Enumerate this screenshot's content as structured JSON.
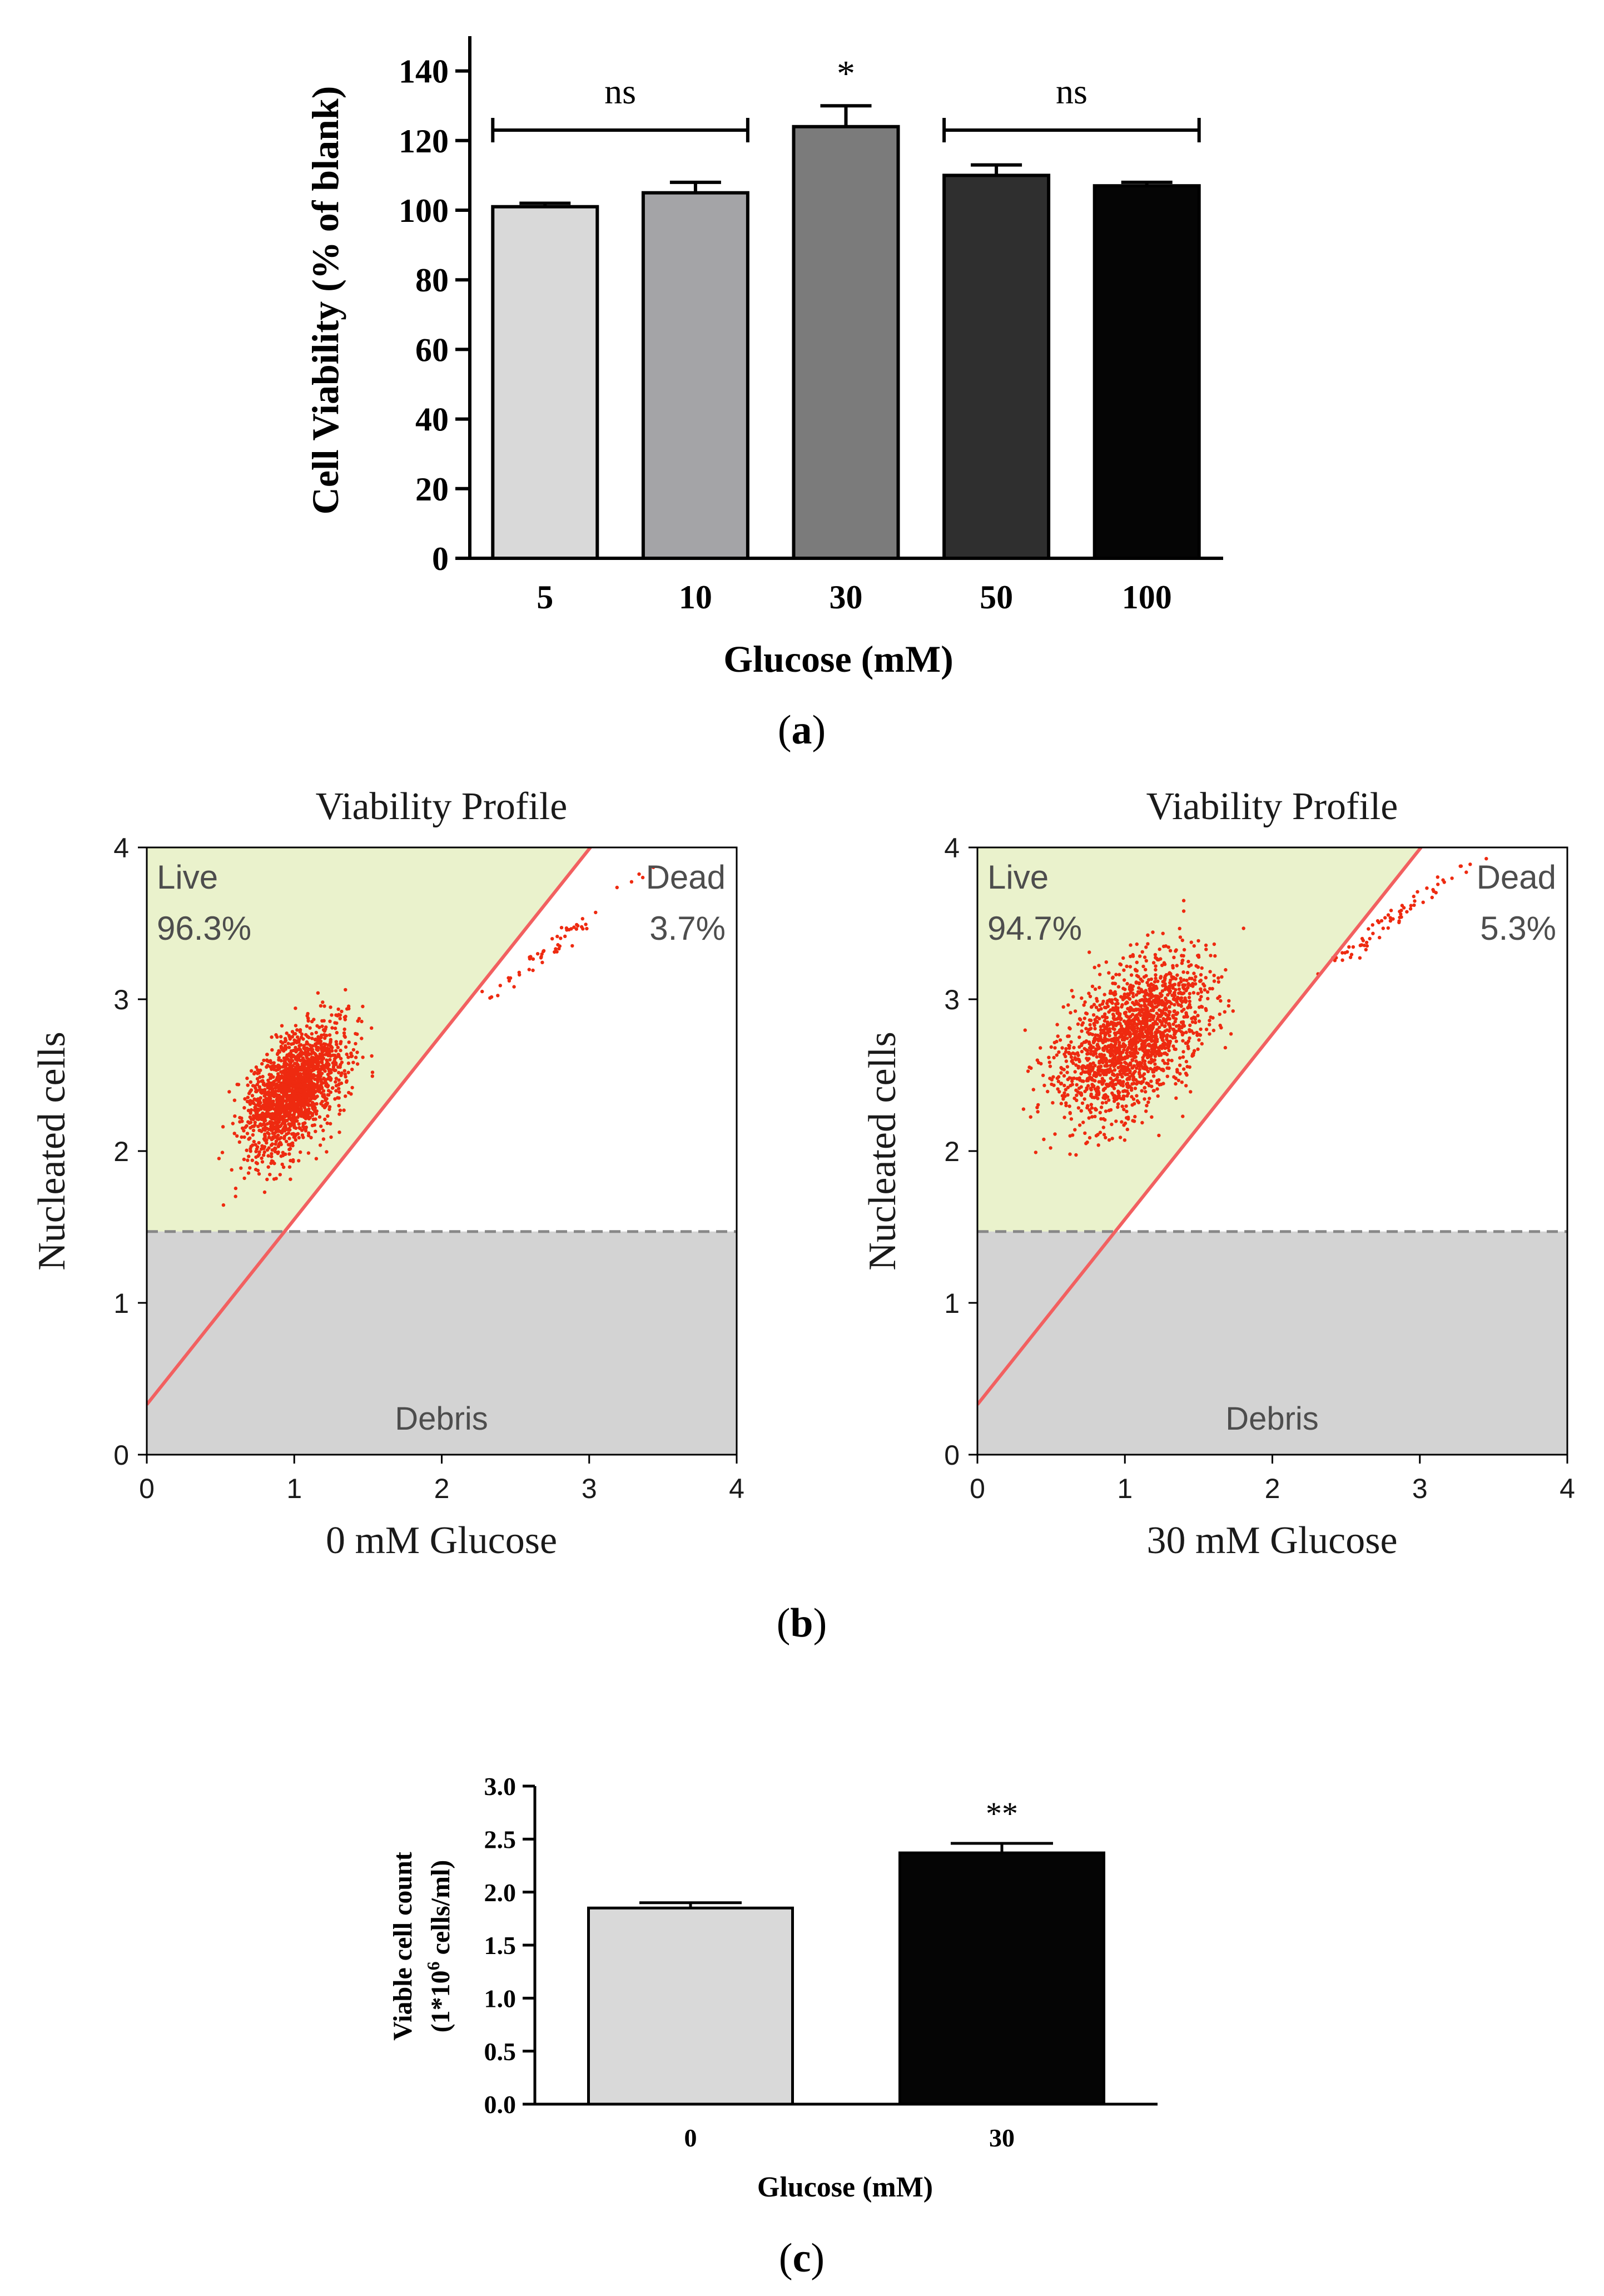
{
  "panel_labels": {
    "a": {
      "open": "(",
      "letter": "a",
      "close": ")"
    },
    "b": {
      "open": "(",
      "letter": "b",
      "close": ")"
    },
    "c": {
      "open": "(",
      "letter": "c",
      "close": ")"
    }
  },
  "chart_data": [
    {
      "id": "a",
      "type": "bar",
      "categories": [
        "5",
        "10",
        "30",
        "50",
        "100"
      ],
      "values": [
        101,
        105,
        124,
        110,
        107
      ],
      "errors": [
        1,
        3,
        6,
        3,
        1
      ],
      "bar_colors": [
        "#d9d9d9",
        "#a4a4a7",
        "#7b7b7b",
        "#2f2f2f",
        "#050505"
      ],
      "xlabel": "Glucose (mM)",
      "ylabel": "Cell Viability (% of blank)",
      "ylim": [
        0,
        150
      ],
      "yticks": [
        "0",
        "20",
        "40",
        "60",
        "80",
        "100",
        "120",
        "140"
      ],
      "annotations": [
        {
          "text": "ns",
          "from": 0,
          "to": 1,
          "y": 123
        },
        {
          "text": "*",
          "at": 2
        },
        {
          "text": "ns",
          "from": 3,
          "to": 4,
          "y": 123
        }
      ]
    },
    {
      "id": "b-left",
      "type": "scatter",
      "title": "Viability Profile",
      "xlabel": "0 mM Glucose",
      "ylabel": "Nucleated cells",
      "xlim": [
        0,
        4
      ],
      "ylim": [
        0,
        4
      ],
      "xticks": [
        "0",
        "1",
        "2",
        "3",
        "4"
      ],
      "yticks": [
        "0",
        "1",
        "2",
        "3",
        "4"
      ],
      "regions": {
        "live_label": "Live",
        "live_pct": "96.3%",
        "dead_label": "Dead",
        "dead_pct": "3.7%",
        "debris_label": "Debris"
      },
      "debris_threshold": 1.47,
      "gate_line": {
        "intercept": 0.33,
        "slope": 1.22
      },
      "clusters": [
        {
          "cx": 1.0,
          "cy": 2.4,
          "sx": 0.17,
          "sy": 0.21,
          "rho": 0.55,
          "n": 1800
        },
        {
          "cx": 2.75,
          "cy": 3.35,
          "sx": 0.25,
          "sy": 0.2,
          "rho": 0.98,
          "n": 55
        }
      ],
      "seed": 7
    },
    {
      "id": "b-right",
      "type": "scatter",
      "title": "Viability Profile",
      "xlabel": "30 mM Glucose",
      "ylabel": "Nucleated cells",
      "xlim": [
        0,
        4
      ],
      "ylim": [
        0,
        4
      ],
      "xticks": [
        "0",
        "1",
        "2",
        "3",
        "4"
      ],
      "yticks": [
        "0",
        "1",
        "2",
        "3",
        "4"
      ],
      "regions": {
        "live_label": "Live",
        "live_pct": "94.7%",
        "dead_label": "Dead",
        "dead_pct": "5.3%",
        "debris_label": "Debris"
      },
      "debris_threshold": 1.47,
      "gate_line": {
        "intercept": 0.33,
        "slope": 1.22
      },
      "clusters": [
        {
          "cx": 1.05,
          "cy": 2.75,
          "sx": 0.24,
          "sy": 0.26,
          "rho": 0.5,
          "n": 1800
        },
        {
          "cx": 2.85,
          "cy": 3.55,
          "sx": 0.25,
          "sy": 0.18,
          "rho": 0.98,
          "n": 70
        }
      ],
      "seed": 19
    },
    {
      "id": "c",
      "type": "bar",
      "categories": [
        "0",
        "30"
      ],
      "values": [
        1.85,
        2.37
      ],
      "errors": [
        0.05,
        0.09
      ],
      "bar_colors": [
        "#d9d9d9",
        "#050505"
      ],
      "xlabel": "Glucose (mM)",
      "ylabel_line1": "Viable cell count",
      "ylabel_line2_pre": "(1*10",
      "ylabel_line2_sup": "6",
      "ylabel_line2_post": " cells/ml)",
      "ylim": [
        0,
        3.0
      ],
      "yticks": [
        "0.0",
        "0.5",
        "1.0",
        "1.5",
        "2.0",
        "2.5",
        "3.0"
      ],
      "annotations": [
        {
          "text": "**",
          "at": 1
        }
      ]
    }
  ]
}
